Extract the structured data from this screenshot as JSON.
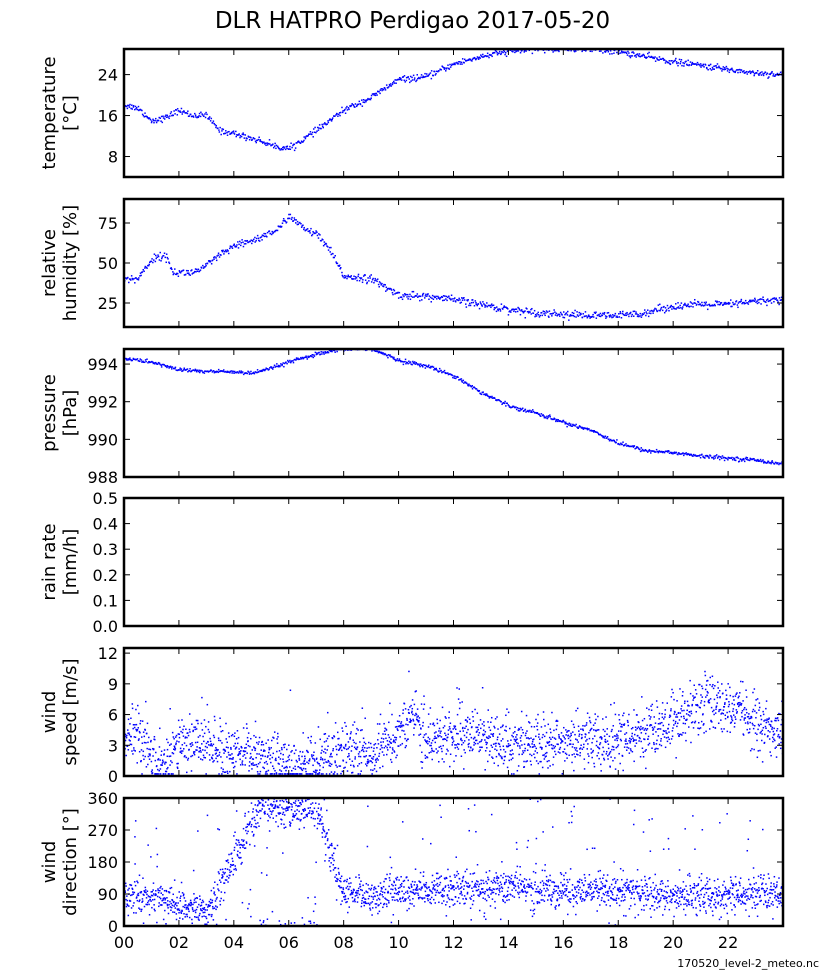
{
  "title": "DLR HATPRO  Perdigao  2017-05-20",
  "footer": "170520_level-2_meteo.nc",
  "colors": {
    "series": "#0000ff",
    "axes": "#000000",
    "background": "#ffffff"
  },
  "chart_data": [
    {
      "type": "scatter",
      "name": "temperature",
      "ylabel_lines": [
        "temperature",
        "[°C]"
      ],
      "ylim": [
        4,
        29
      ],
      "yticks": [
        8,
        16,
        24
      ],
      "xlim": [
        0,
        24
      ],
      "keypoints": [
        [
          0,
          18
        ],
        [
          0.5,
          17.5
        ],
        [
          1,
          15
        ],
        [
          1.5,
          15.5
        ],
        [
          2,
          17
        ],
        [
          2.5,
          16
        ],
        [
          3,
          16
        ],
        [
          3.5,
          13
        ],
        [
          4,
          12.5
        ],
        [
          5,
          11
        ],
        [
          5.5,
          10
        ],
        [
          6,
          9.5
        ],
        [
          7,
          13
        ],
        [
          8,
          17
        ],
        [
          9,
          19.5
        ],
        [
          10,
          23
        ],
        [
          11,
          23.5
        ],
        [
          12,
          26
        ],
        [
          13,
          27.5
        ],
        [
          14,
          28.5
        ],
        [
          15,
          29
        ],
        [
          16,
          29
        ],
        [
          17,
          29
        ],
        [
          18,
          28.5
        ],
        [
          19,
          27.5
        ],
        [
          20,
          26.5
        ],
        [
          21,
          25.8
        ],
        [
          22,
          25
        ],
        [
          23,
          24.3
        ],
        [
          24,
          24
        ]
      ],
      "noise": 0.3,
      "points": 900
    },
    {
      "type": "scatter",
      "name": "relative-humidity",
      "ylabel_lines": [
        "relative",
        "humidity [%]"
      ],
      "ylim": [
        10,
        90
      ],
      "yticks": [
        25,
        50,
        75
      ],
      "xlim": [
        0,
        24
      ],
      "keypoints": [
        [
          0,
          40
        ],
        [
          0.5,
          40
        ],
        [
          1,
          52
        ],
        [
          1.5,
          55
        ],
        [
          1.8,
          44
        ],
        [
          2.5,
          44
        ],
        [
          3,
          48
        ],
        [
          3.5,
          55
        ],
        [
          4,
          60
        ],
        [
          5,
          66
        ],
        [
          5.7,
          72
        ],
        [
          6,
          80
        ],
        [
          6.5,
          72
        ],
        [
          7,
          68
        ],
        [
          7.5,
          58
        ],
        [
          8,
          42
        ],
        [
          9,
          40
        ],
        [
          10,
          30
        ],
        [
          11,
          29
        ],
        [
          12,
          27
        ],
        [
          13,
          24
        ],
        [
          14,
          21
        ],
        [
          15,
          19
        ],
        [
          16,
          18
        ],
        [
          17,
          17
        ],
        [
          18,
          17
        ],
        [
          19,
          19
        ],
        [
          20,
          23
        ],
        [
          21,
          24
        ],
        [
          22,
          24
        ],
        [
          23,
          26
        ],
        [
          24,
          27
        ]
      ],
      "noise": 1.2,
      "points": 900
    },
    {
      "type": "scatter",
      "name": "pressure",
      "ylabel_lines": [
        "pressure",
        "[hPa]"
      ],
      "ylim": [
        988,
        994.8
      ],
      "yticks": [
        988,
        990,
        992,
        994
      ],
      "xlim": [
        0,
        24
      ],
      "keypoints": [
        [
          0,
          994.3
        ],
        [
          1,
          994.1
        ],
        [
          2,
          993.7
        ],
        [
          3,
          993.6
        ],
        [
          4,
          993.6
        ],
        [
          4.5,
          993.5
        ],
        [
          5,
          993.6
        ],
        [
          6,
          994.1
        ],
        [
          7,
          994.5
        ],
        [
          8,
          994.8
        ],
        [
          9,
          994.8
        ],
        [
          10,
          994.2
        ],
        [
          11,
          993.9
        ],
        [
          12,
          993.4
        ],
        [
          13,
          992.5
        ],
        [
          14,
          991.8
        ],
        [
          15,
          991.4
        ],
        [
          16,
          990.9
        ],
        [
          17,
          990.5
        ],
        [
          18,
          989.8
        ],
        [
          19,
          989.4
        ],
        [
          20,
          989.3
        ],
        [
          21,
          989.1
        ],
        [
          22,
          989.0
        ],
        [
          23,
          988.9
        ],
        [
          24,
          988.7
        ]
      ],
      "noise": 0.05,
      "points": 900
    },
    {
      "type": "scatter",
      "name": "rain-rate",
      "ylabel_lines": [
        "rain rate",
        "[mm/h]"
      ],
      "ylim": [
        0,
        0.5
      ],
      "yticks": [
        0.0,
        0.1,
        0.2,
        0.3,
        0.4,
        0.5
      ],
      "xlim": [
        0,
        24
      ],
      "keypoints": [],
      "noise": 0,
      "points": 0
    },
    {
      "type": "scatter",
      "name": "wind-speed",
      "ylabel_lines": [
        "wind",
        "speed [m/s]"
      ],
      "ylim": [
        0,
        12.5
      ],
      "yticks": [
        0,
        3,
        6,
        9,
        12
      ],
      "xlim": [
        0,
        24
      ],
      "keypoints": [
        [
          0,
          4
        ],
        [
          0.8,
          3
        ],
        [
          1,
          1
        ],
        [
          1.5,
          1
        ],
        [
          2,
          3.5
        ],
        [
          3,
          3
        ],
        [
          4,
          2
        ],
        [
          5,
          2
        ],
        [
          6,
          1
        ],
        [
          7,
          1.2
        ],
        [
          8,
          2.5
        ],
        [
          9,
          2
        ],
        [
          10,
          4
        ],
        [
          10.5,
          6
        ],
        [
          11,
          3.5
        ],
        [
          12,
          4
        ],
        [
          13,
          3.5
        ],
        [
          14,
          3
        ],
        [
          15,
          3
        ],
        [
          16,
          3
        ],
        [
          17,
          3.5
        ],
        [
          18,
          3.5
        ],
        [
          19,
          4
        ],
        [
          20,
          5
        ],
        [
          21,
          7
        ],
        [
          22,
          7
        ],
        [
          23,
          5
        ],
        [
          24,
          4
        ]
      ],
      "noise": 1.3,
      "points": 2200
    },
    {
      "type": "scatter",
      "name": "wind-direction",
      "ylabel_lines": [
        "wind",
        "direction [°]"
      ],
      "ylim": [
        0,
        360
      ],
      "yticks": [
        0,
        90,
        180,
        270,
        360
      ],
      "xticks": [
        "00",
        "02",
        "04",
        "06",
        "08",
        "10",
        "12",
        "14",
        "16",
        "18",
        "20",
        "22"
      ],
      "xlim": [
        0,
        24
      ],
      "keypoints": [
        [
          0,
          80
        ],
        [
          1,
          80
        ],
        [
          2,
          60
        ],
        [
          3,
          40
        ],
        [
          5,
          330
        ],
        [
          7,
          330
        ],
        [
          8,
          90
        ],
        [
          9,
          80
        ],
        [
          10,
          100
        ],
        [
          12,
          100
        ],
        [
          14,
          110
        ],
        [
          16,
          90
        ],
        [
          18,
          100
        ],
        [
          20,
          80
        ],
        [
          22,
          90
        ],
        [
          24,
          90
        ]
      ],
      "noise": 25,
      "points": 2200
    }
  ]
}
